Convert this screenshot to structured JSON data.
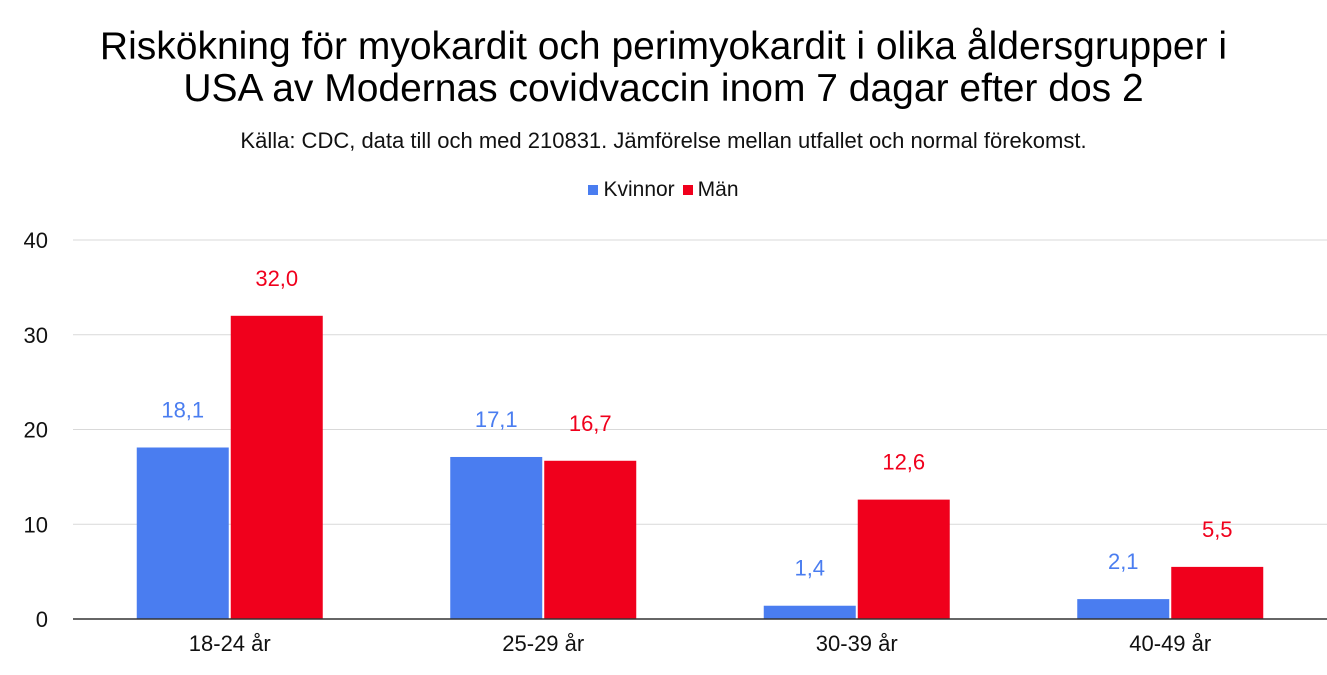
{
  "chart_data": {
    "type": "bar",
    "title": "Riskökning för myokardit och perimyokardit i olika åldersgrupper i USA av Modernas covidvaccin inom 7 dagar efter dos 2",
    "title_lines": [
      "Riskökning för myokardit och perimyokardit i olika åldersgrupper i",
      "USA av Modernas covidvaccin inom 7 dagar efter dos 2"
    ],
    "subtitle": "Källa: CDC, data till och med 210831. Jämförelse mellan utfallet och normal förekomst.",
    "categories": [
      "18-24 år",
      "25-29 år",
      "30-39 år",
      "40-49 år"
    ],
    "series": [
      {
        "name": "Kvinnor",
        "color": "#4a7df0",
        "values": [
          18.1,
          17.1,
          1.4,
          2.1
        ],
        "labels": [
          "18,1",
          "17,1",
          "1,4",
          "2,1"
        ]
      },
      {
        "name": "Män",
        "color": "#f0001c",
        "values": [
          32.0,
          16.7,
          12.6,
          5.5
        ],
        "labels": [
          "32,0",
          "16,7",
          "12,6",
          "5,5"
        ]
      }
    ],
    "ylim": [
      0,
      40
    ],
    "yticks": [
      "0",
      "10",
      "20",
      "30",
      "40"
    ],
    "xlabel": "",
    "ylabel": "",
    "grid": true,
    "legend_position": "top-center"
  }
}
